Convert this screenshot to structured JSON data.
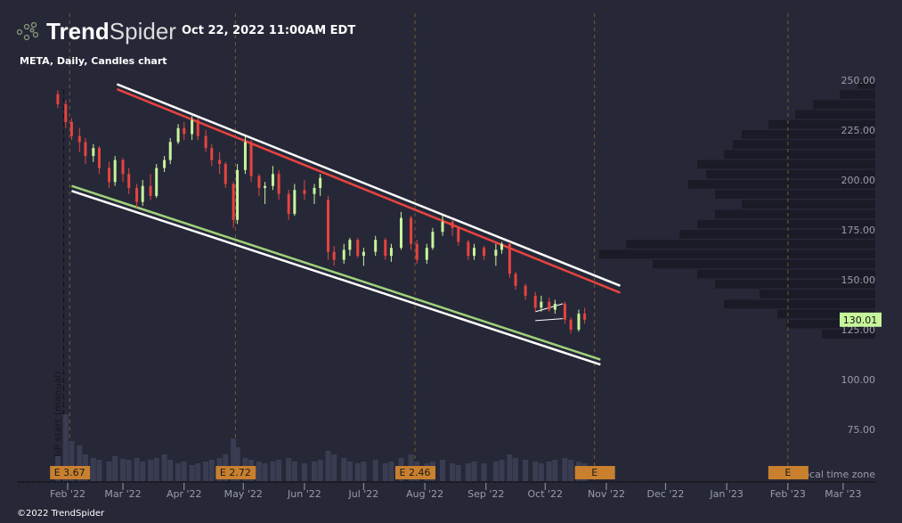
{
  "header": {
    "brand_bold": "Trend",
    "brand_light": "Spider",
    "datetime": "Oct 22, 2022 11:00AM EDT",
    "chart_title": "META, Daily, Candles chart"
  },
  "footer": {
    "copyright": "©2022 TrendSpider",
    "timezone_note": "r local time zone",
    "vbp_label": "VbP start (manual)"
  },
  "colors": {
    "background": "#262838",
    "up": "#c7f59b",
    "down": "#e8433f",
    "upper_line": "#e8433f",
    "lower_line": "#9fd27a",
    "trendline_outline": "#ffffff",
    "earnings": "#c8802f",
    "volume": "#3a3d52",
    "profile": "#1a1b26",
    "last_price_bg": "#c7f59b"
  },
  "chart_data": {
    "type": "candlestick",
    "title": "META, Daily, Candles chart",
    "ylim": [
      60,
      260
    ],
    "y_ticks": [
      "250.00",
      "225.00",
      "200.00",
      "175.00",
      "150.00",
      "125.00",
      "100.00",
      "75.00"
    ],
    "y_tick_values": [
      250,
      225,
      200,
      175,
      150,
      125,
      100,
      75
    ],
    "x_ticks": [
      {
        "label": "Feb '22",
        "date": "2022-02-01"
      },
      {
        "label": "Mar '22",
        "date": "2022-03-01"
      },
      {
        "label": "Apr '22",
        "date": "2022-04-01"
      },
      {
        "label": "May '22",
        "date": "2022-05-01"
      },
      {
        "label": "Jun '22",
        "date": "2022-06-01"
      },
      {
        "label": "Jul '22",
        "date": "2022-07-01"
      },
      {
        "label": "Aug '22",
        "date": "2022-08-01"
      },
      {
        "label": "Sep '22",
        "date": "2022-09-01"
      },
      {
        "label": "Oct '22",
        "date": "2022-10-01"
      },
      {
        "label": "Nov '22",
        "date": "2022-11-01"
      },
      {
        "label": "Dec '22",
        "date": "2022-12-01"
      },
      {
        "label": "Jan '23",
        "date": "2023-01-01"
      },
      {
        "label": "Feb '23",
        "date": "2023-02-01"
      },
      {
        "label": "Mar '23",
        "date": "2023-03-01"
      }
    ],
    "last_price": "130.01",
    "candles": [
      [
        "2022-01-27",
        243,
        245,
        236,
        238
      ],
      [
        "2022-01-31",
        238,
        240,
        226,
        229
      ],
      [
        "2022-02-03",
        229,
        231,
        220,
        222
      ],
      [
        "2022-02-07",
        222,
        226,
        214,
        219
      ],
      [
        "2022-02-10",
        219,
        221,
        208,
        212
      ],
      [
        "2022-02-14",
        212,
        218,
        209,
        216
      ],
      [
        "2022-02-17",
        216,
        217,
        203,
        206
      ],
      [
        "2022-02-22",
        206,
        209,
        196,
        199
      ],
      [
        "2022-02-25",
        199,
        212,
        197,
        210
      ],
      [
        "2022-03-01",
        210,
        211,
        199,
        203
      ],
      [
        "2022-03-04",
        203,
        206,
        193,
        196
      ],
      [
        "2022-03-08",
        196,
        198,
        186,
        189
      ],
      [
        "2022-03-11",
        189,
        200,
        187,
        197
      ],
      [
        "2022-03-15",
        197,
        203,
        190,
        192
      ],
      [
        "2022-03-18",
        192,
        208,
        191,
        206
      ],
      [
        "2022-03-22",
        206,
        212,
        204,
        210
      ],
      [
        "2022-03-25",
        210,
        221,
        208,
        219
      ],
      [
        "2022-03-29",
        219,
        228,
        218,
        226
      ],
      [
        "2022-04-01",
        226,
        229,
        220,
        223
      ],
      [
        "2022-04-05",
        223,
        232,
        220,
        230
      ],
      [
        "2022-04-08",
        230,
        231,
        220,
        222
      ],
      [
        "2022-04-12",
        222,
        225,
        214,
        216
      ],
      [
        "2022-04-15",
        216,
        218,
        207,
        210
      ],
      [
        "2022-04-19",
        210,
        214,
        203,
        208
      ],
      [
        "2022-04-22",
        208,
        209,
        196,
        198
      ],
      [
        "2022-04-26",
        198,
        199,
        176,
        180
      ],
      [
        "2022-04-28",
        180,
        208,
        178,
        205
      ],
      [
        "2022-05-02",
        205,
        222,
        203,
        219
      ],
      [
        "2022-05-05",
        219,
        220,
        199,
        202
      ],
      [
        "2022-05-09",
        202,
        203,
        192,
        196
      ],
      [
        "2022-05-12",
        196,
        199,
        188,
        197
      ],
      [
        "2022-05-16",
        197,
        207,
        195,
        203
      ],
      [
        "2022-05-19",
        203,
        205,
        190,
        193
      ],
      [
        "2022-05-24",
        193,
        195,
        180,
        183
      ],
      [
        "2022-05-27",
        183,
        198,
        182,
        195
      ],
      [
        "2022-06-01",
        195,
        200,
        190,
        193
      ],
      [
        "2022-06-06",
        193,
        198,
        188,
        196
      ],
      [
        "2022-06-09",
        196,
        203,
        192,
        201
      ],
      [
        "2022-06-13",
        190,
        192,
        160,
        164
      ],
      [
        "2022-06-16",
        164,
        167,
        157,
        160
      ],
      [
        "2022-06-21",
        160,
        168,
        158,
        165
      ],
      [
        "2022-06-24",
        165,
        171,
        162,
        170
      ],
      [
        "2022-06-28",
        170,
        171,
        161,
        162
      ],
      [
        "2022-07-01",
        162,
        166,
        157,
        164
      ],
      [
        "2022-07-07",
        164,
        172,
        162,
        170
      ],
      [
        "2022-07-12",
        170,
        171,
        160,
        162
      ],
      [
        "2022-07-15",
        162,
        168,
        159,
        166
      ],
      [
        "2022-07-20",
        166,
        184,
        165,
        181
      ],
      [
        "2022-07-25",
        181,
        182,
        165,
        168
      ],
      [
        "2022-07-28",
        168,
        170,
        158,
        160
      ],
      [
        "2022-08-02",
        160,
        168,
        158,
        166
      ],
      [
        "2022-08-05",
        166,
        176,
        165,
        174
      ],
      [
        "2022-08-10",
        174,
        182,
        172,
        179
      ],
      [
        "2022-08-15",
        179,
        180,
        172,
        176
      ],
      [
        "2022-08-18",
        176,
        177,
        167,
        169
      ],
      [
        "2022-08-23",
        169,
        170,
        160,
        162
      ],
      [
        "2022-08-26",
        162,
        168,
        160,
        166
      ],
      [
        "2022-08-31",
        166,
        167,
        160,
        162
      ],
      [
        "2022-09-06",
        162,
        168,
        157,
        165
      ],
      [
        "2022-09-09",
        165,
        169,
        163,
        168
      ],
      [
        "2022-09-13",
        168,
        169,
        151,
        153
      ],
      [
        "2022-09-16",
        153,
        154,
        145,
        147
      ],
      [
        "2022-09-21",
        147,
        148,
        140,
        142
      ],
      [
        "2022-09-26",
        142,
        144,
        134,
        136
      ],
      [
        "2022-09-29",
        136,
        142,
        134,
        139
      ],
      [
        "2022-10-03",
        139,
        141,
        134,
        135
      ],
      [
        "2022-10-06",
        135,
        140,
        133,
        138
      ],
      [
        "2022-10-11",
        138,
        139,
        128,
        130
      ],
      [
        "2022-10-14",
        130,
        131,
        123,
        125
      ],
      [
        "2022-10-18",
        125,
        135,
        124,
        133
      ],
      [
        "2022-10-21",
        133,
        136,
        128,
        130.01
      ]
    ],
    "volume": [
      28,
      75,
      45,
      40,
      30,
      26,
      24,
      22,
      28,
      25,
      24,
      26,
      22,
      24,
      26,
      30,
      24,
      20,
      22,
      18,
      20,
      22,
      24,
      26,
      30,
      48,
      38,
      26,
      24,
      22,
      20,
      22,
      24,
      26,
      22,
      20,
      22,
      24,
      34,
      30,
      26,
      22,
      20,
      22,
      24,
      20,
      22,
      26,
      30,
      22,
      20,
      22,
      24,
      20,
      18,
      20,
      22,
      20,
      22,
      24,
      30,
      26,
      24,
      22,
      20,
      22,
      24,
      26,
      24,
      22,
      20
    ],
    "trendlines": [
      {
        "name": "upper-outline",
        "color": "#ffffff",
        "from": [
          "2022-02-26",
          248
        ],
        "to": [
          "2022-11-08",
          147
        ]
      },
      {
        "name": "upper-resistance",
        "color": "#e8433f",
        "from": [
          "2022-02-26",
          245.5
        ],
        "to": [
          "2022-11-08",
          143.5
        ]
      },
      {
        "name": "lower-support",
        "color": "#9fd27a",
        "from": [
          "2022-02-03",
          197
        ],
        "to": [
          "2022-10-29",
          110
        ]
      },
      {
        "name": "lower-outline",
        "color": "#ffffff",
        "from": [
          "2022-02-03",
          194.5
        ],
        "to": [
          "2022-10-29",
          107.5
        ]
      },
      {
        "name": "flag-top",
        "color": "#ffffff",
        "from": [
          "2022-09-26",
          134
        ],
        "to": [
          "2022-10-10",
          138
        ]
      },
      {
        "name": "flag-bottom",
        "color": "#ffffff",
        "from": [
          "2022-09-26",
          129.5
        ],
        "to": [
          "2022-10-10",
          130.5
        ]
      }
    ],
    "earnings": [
      {
        "label": "E 3.67",
        "date": "2022-02-02"
      },
      {
        "label": "E 2.72",
        "date": "2022-04-27"
      },
      {
        "label": "E 2.46",
        "date": "2022-07-27"
      },
      {
        "label": "E",
        "date": "2022-10-26"
      },
      {
        "label": "E",
        "date": "2023-02-01"
      }
    ],
    "volume_profile": {
      "bin_size": 5,
      "bins": [
        [
          247.5,
          20
        ],
        [
          242.5,
          40
        ],
        [
          237.5,
          70
        ],
        [
          232.5,
          90
        ],
        [
          227.5,
          120
        ],
        [
          222.5,
          150
        ],
        [
          217.5,
          160
        ],
        [
          212.5,
          170
        ],
        [
          207.5,
          200
        ],
        [
          202.5,
          190
        ],
        [
          197.5,
          210
        ],
        [
          192.5,
          180
        ],
        [
          187.5,
          150
        ],
        [
          182.5,
          180
        ],
        [
          177.5,
          200
        ],
        [
          172.5,
          220
        ],
        [
          167.5,
          280
        ],
        [
          162.5,
          310
        ],
        [
          157.5,
          250
        ],
        [
          152.5,
          200
        ],
        [
          147.5,
          180
        ],
        [
          142.5,
          130
        ],
        [
          137.5,
          170
        ],
        [
          132.5,
          110
        ],
        [
          127.5,
          100
        ],
        [
          122.5,
          60
        ]
      ]
    }
  }
}
